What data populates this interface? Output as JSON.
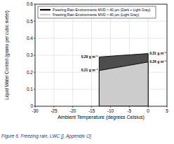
{
  "chart_data": {
    "type": "area",
    "x_label": "Ambient Temperature (degrees Celsius)",
    "y_label": "Liquid Water Content (grams per cubic meter)",
    "caption": "Figure 6. Freezing rain, LWC [], Appendix O]",
    "x": [
      -13,
      0
    ],
    "series": [
      {
        "name": "Freezing Rain Environments MVD < 40 µm (Dark + Light Gray)",
        "color": "#4d4d4d",
        "values": [
          0.29,
          0.31
        ],
        "value_labels": [
          "0.29 g m⁻³",
          "0.31 g m⁻³"
        ]
      },
      {
        "name": "Freezing Rain Environments MVD > 40 µm (Light Gray)",
        "color": "#cccccc",
        "values": [
          0.21,
          0.26
        ],
        "value_labels": [
          "0.21 g m⁻³",
          "0.26 g m⁻³"
        ]
      }
    ],
    "xlim": [
      -30,
      5
    ],
    "xticks": [
      -30,
      -25,
      -20,
      -15,
      -10,
      -5,
      0,
      5
    ],
    "ylim": [
      0,
      0.6
    ],
    "yticks": [
      0,
      0.1,
      0.2,
      0.3,
      0.4,
      0.5,
      0.6
    ],
    "grid": true,
    "legend": "upper left",
    "data_labels": true
  }
}
